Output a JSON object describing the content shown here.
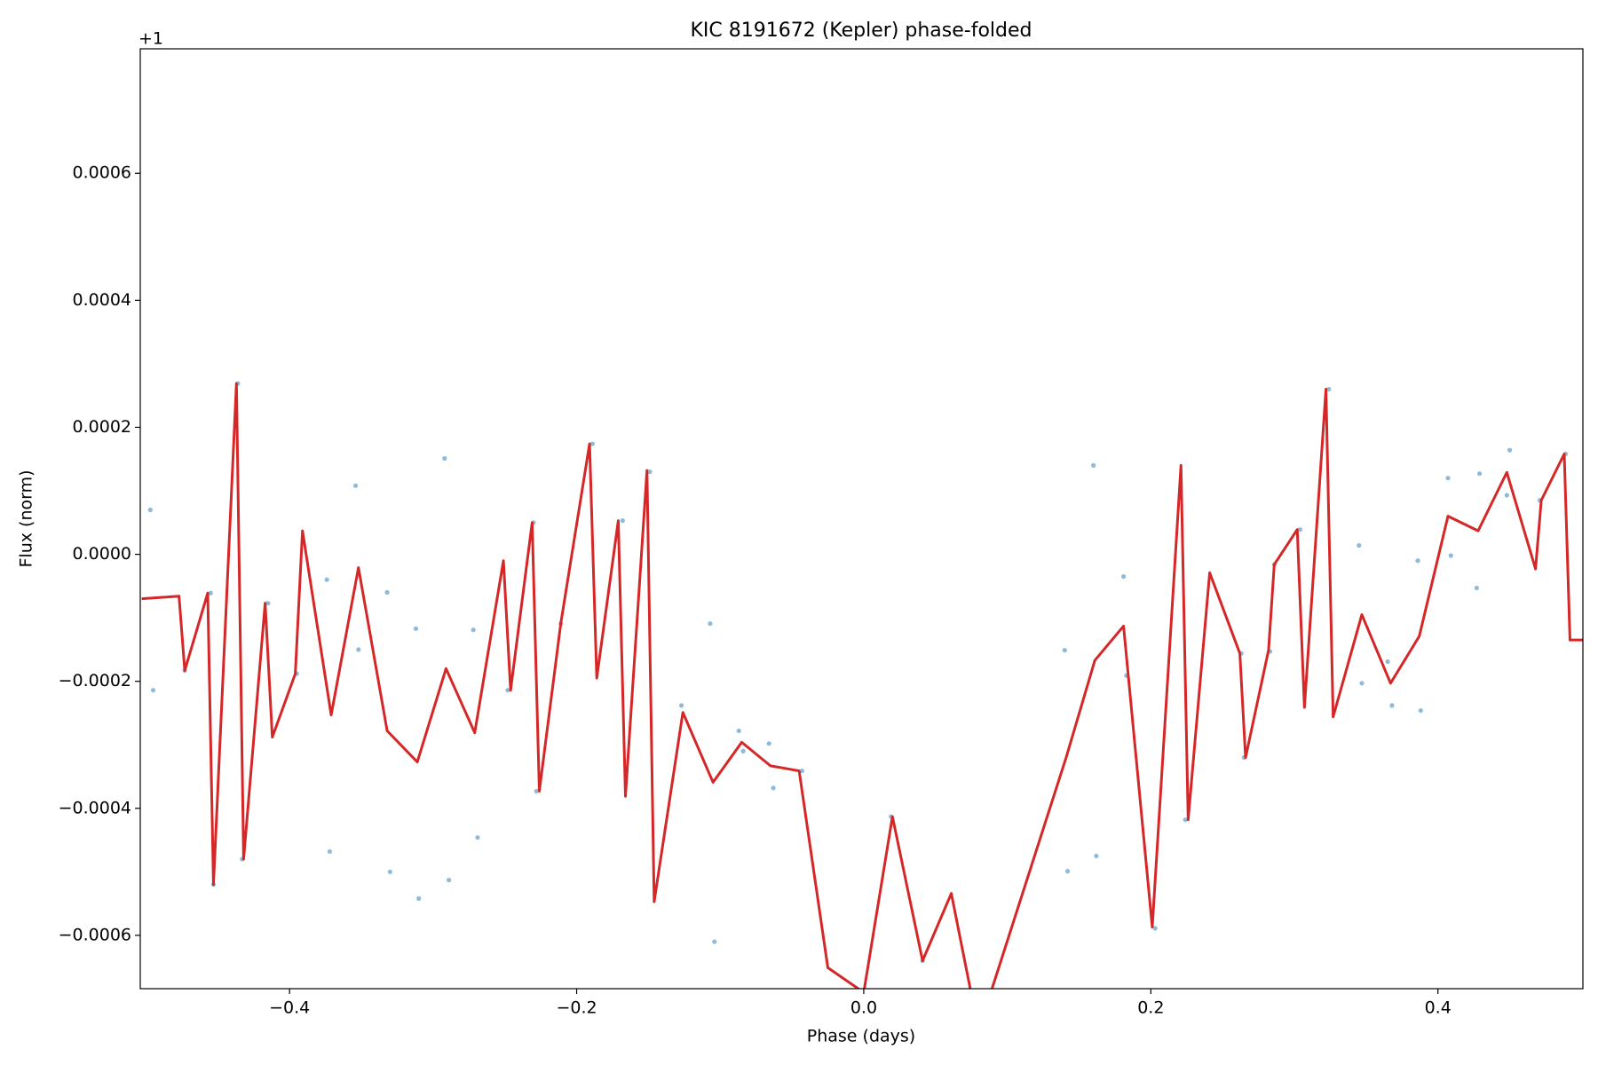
{
  "chart_data": {
    "type": "line",
    "title": "KIC 8191672 (Kepler) phase-folded",
    "x_label": "Phase (days)",
    "y_label": "Flux (norm)",
    "y_offset_text": "+1",
    "xlim": [
      -0.504,
      0.501
    ],
    "ylim": [
      -0.000684,
      0.000796
    ],
    "xticks": [
      {
        "value": -0.4,
        "label": "−0.4"
      },
      {
        "value": -0.2,
        "label": "−0.2"
      },
      {
        "value": 0.0,
        "label": "0.0"
      },
      0.2,
      0.4
    ],
    "yticks": [
      {
        "value": -0.0006,
        "label": "−0.0006"
      },
      {
        "value": -0.0004,
        "label": "−0.0004"
      },
      {
        "value": -0.0002,
        "label": "−0.0002"
      },
      {
        "value": 0,
        "label": "0.0000"
      },
      0.0002,
      0.0004,
      0.0006
    ],
    "grid": false,
    "series": [
      {
        "type": "scatter",
        "color": "#1f77b4",
        "x": [
          -0.497,
          -0.495,
          -0.473,
          -0.455,
          -0.453,
          -0.436,
          -0.433,
          -0.415,
          -0.395,
          -0.374,
          -0.372,
          -0.354,
          -0.352,
          -0.332,
          -0.33,
          -0.312,
          -0.31,
          -0.292,
          -0.289,
          -0.272,
          -0.269,
          -0.248,
          -0.23,
          -0.228,
          -0.211,
          -0.189,
          -0.168,
          -0.149,
          -0.127,
          -0.107,
          -0.104,
          -0.087,
          -0.084,
          -0.066,
          -0.063,
          -0.043,
          0.019,
          0.041,
          0.14,
          0.142,
          0.16,
          0.162,
          0.181,
          0.183,
          0.203,
          0.224,
          0.263,
          0.265,
          0.283,
          0.286,
          0.304,
          0.324,
          0.345,
          0.347,
          0.365,
          0.368,
          0.386,
          0.388,
          0.407,
          0.409,
          0.427,
          0.429,
          0.448,
          0.45,
          0.471,
          0.489
        ],
        "values": [
          7e-05,
          -0.000214,
          -0.000183,
          -6.1e-05,
          -0.00052,
          0.000269,
          -0.00048,
          -7.7e-05,
          -0.000188,
          -4e-05,
          -0.000468,
          0.000108,
          -0.00015,
          -6e-05,
          -0.0005,
          -0.000117,
          -0.000542,
          0.000151,
          -0.000513,
          -0.000119,
          -0.000446,
          -0.000214,
          5e-05,
          -0.000373,
          -0.000109,
          0.000174,
          5.3e-05,
          0.00013,
          -0.000238,
          -0.000109,
          -0.00061,
          -0.000278,
          -0.00031,
          -0.000298,
          -0.000368,
          -0.000341,
          -0.000413,
          -0.00064,
          -0.000151,
          -0.000499,
          0.00014,
          -0.000475,
          -3.5e-05,
          -0.000191,
          -0.000589,
          -0.000418,
          -0.000156,
          -0.00032,
          -0.000153,
          -1.6e-05,
          3.9e-05,
          0.00026,
          1.4e-05,
          -0.000203,
          -0.000169,
          -0.000238,
          -1e-05,
          -0.000246,
          0.00012,
          -2e-06,
          -5.3e-05,
          0.000127,
          9.3e-05,
          0.000164,
          8.5e-05,
          0.000158
        ]
      },
      {
        "type": "line",
        "color": "#d62728",
        "x": [
          -0.503,
          -0.477,
          -0.473,
          -0.457,
          -0.453,
          -0.437,
          -0.432,
          -0.417,
          -0.412,
          -0.396,
          -0.391,
          -0.371,
          -0.352,
          -0.332,
          -0.311,
          -0.291,
          -0.271,
          -0.251,
          -0.246,
          -0.231,
          -0.226,
          -0.211,
          -0.191,
          -0.186,
          -0.171,
          -0.166,
          -0.151,
          -0.146,
          -0.126,
          -0.105,
          -0.085,
          -0.065,
          -0.045,
          -0.025,
          0.0,
          0.02,
          0.041,
          0.061,
          0.08,
          0.141,
          0.161,
          0.181,
          0.201,
          0.221,
          0.226,
          0.241,
          0.262,
          0.266,
          0.282,
          0.286,
          0.302,
          0.307,
          0.322,
          0.327,
          0.347,
          0.367,
          0.387,
          0.407,
          0.428,
          0.448,
          0.468,
          0.472,
          0.488,
          0.492,
          0.501
        ],
        "values": [
          -7e-05,
          -6.6e-05,
          -0.000183,
          -6.1e-05,
          -0.00052,
          0.000269,
          -0.00048,
          -7.7e-05,
          -0.000288,
          -0.000188,
          3.7e-05,
          -0.000253,
          -2.1e-05,
          -0.000278,
          -0.000327,
          -0.00018,
          -0.000281,
          -1e-05,
          -0.000214,
          5e-05,
          -0.000373,
          -0.000108,
          0.000174,
          -0.000195,
          5.3e-05,
          -0.000381,
          0.000132,
          -0.000547,
          -0.000249,
          -0.000359,
          -0.000296,
          -0.000333,
          -0.000341,
          -0.000651,
          -0.00069,
          -0.000413,
          -0.00064,
          -0.000534,
          -0.00075,
          -0.00032,
          -0.000167,
          -0.000113,
          -0.000587,
          0.00014,
          -0.000418,
          -2.9e-05,
          -0.000156,
          -0.00032,
          -0.000151,
          -1.6e-05,
          3.9e-05,
          -0.000241,
          0.00026,
          -0.000256,
          -9.5e-05,
          -0.000203,
          -0.000129,
          6e-05,
          3.7e-05,
          0.000129,
          -2.3e-05,
          8.5e-05,
          0.000158,
          -0.000135,
          -0.000135
        ]
      }
    ]
  }
}
